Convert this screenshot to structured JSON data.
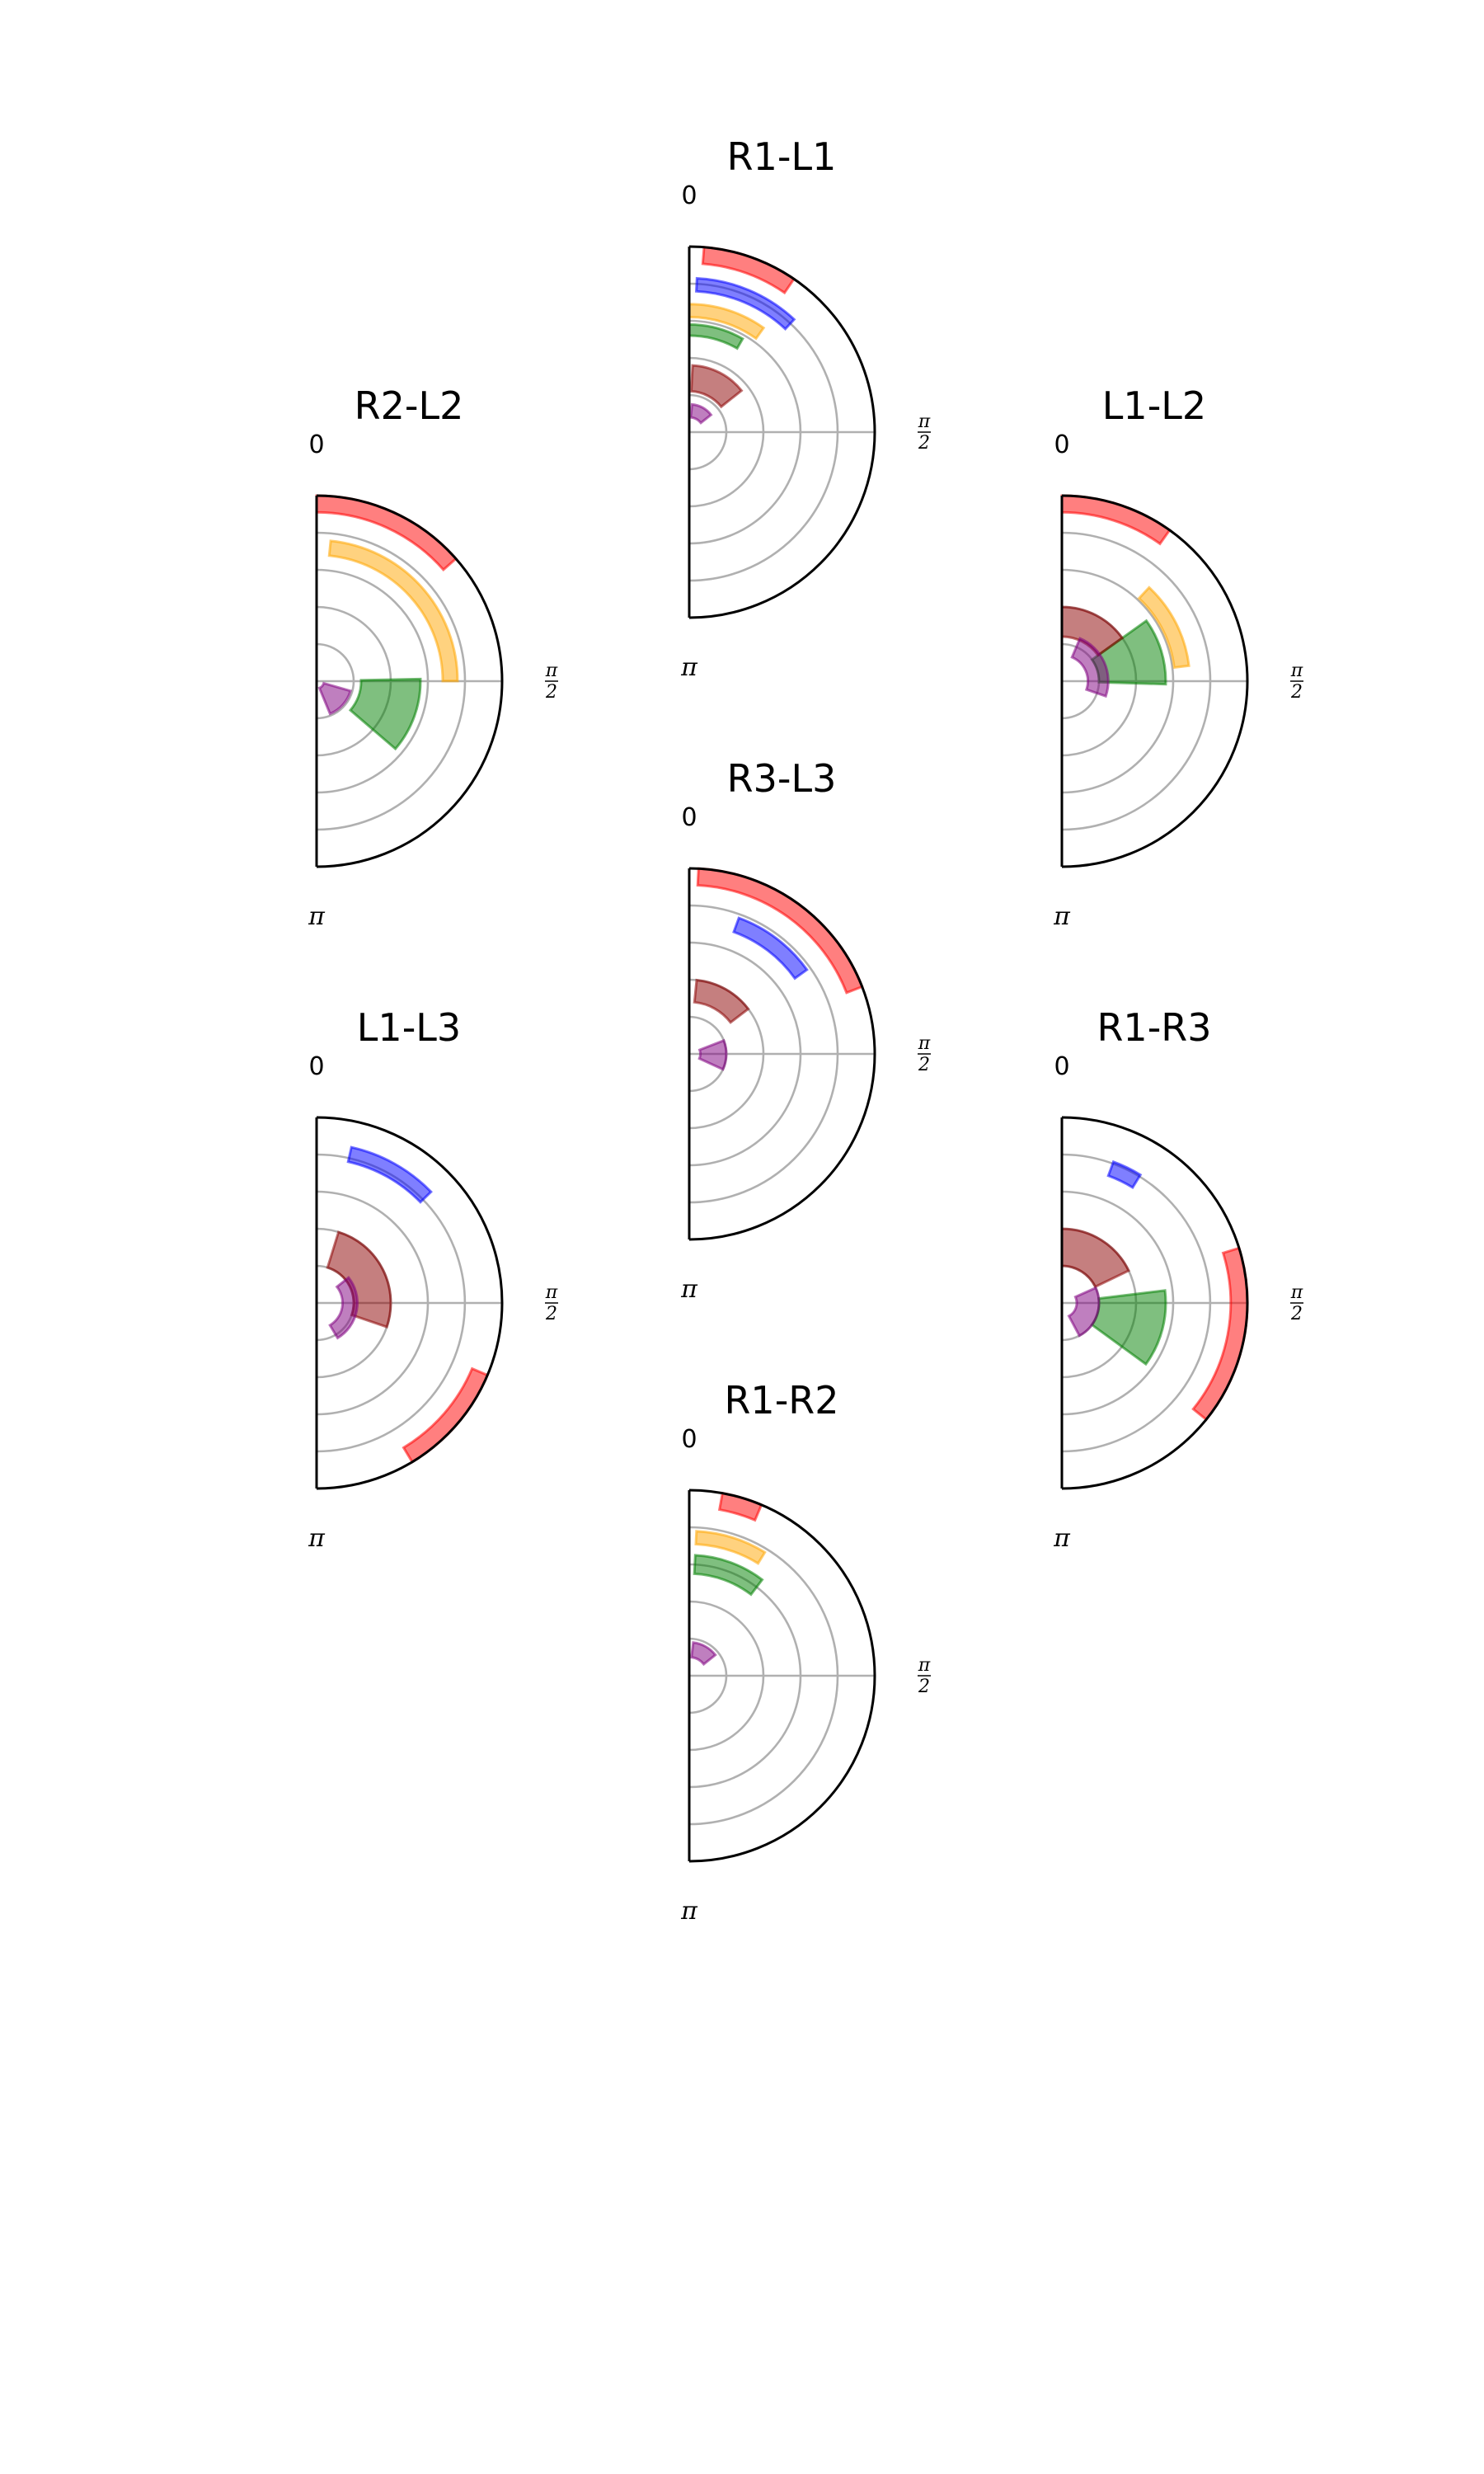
{
  "chart_data": [
    {
      "type": "polar-bar",
      "title": "R1-L1",
      "theta_tick_labels": [
        "0",
        "π/2",
        "π"
      ],
      "rlim": [
        0,
        5
      ],
      "grid": true,
      "bars": [
        {
          "color": "#ff0000",
          "theta_start": 0.08,
          "theta_end": 0.6,
          "r_inner": 4.55,
          "r_outer": 5.0
        },
        {
          "color": "#0000ff",
          "theta_start": 0.05,
          "theta_end": 0.75,
          "r_inner": 3.8,
          "r_outer": 4.15
        },
        {
          "color": "#ffa500",
          "theta_start": 0.0,
          "theta_end": 0.62,
          "r_inner": 3.1,
          "r_outer": 3.45
        },
        {
          "color": "#008000",
          "theta_start": 0.0,
          "theta_end": 0.52,
          "r_inner": 2.6,
          "r_outer": 2.9
        },
        {
          "color": "#8b0000",
          "theta_start": 0.05,
          "theta_end": 0.9,
          "r_inner": 1.1,
          "r_outer": 1.8
        },
        {
          "color": "#800080",
          "theta_start": 0.1,
          "theta_end": 0.9,
          "r_inner": 0.4,
          "r_outer": 0.75
        }
      ]
    },
    {
      "type": "polar-bar",
      "title": "R2-L2",
      "theta_tick_labels": [
        "0",
        "π/2",
        "π"
      ],
      "rlim": [
        0,
        5
      ],
      "grid": true,
      "bars": [
        {
          "color": "#ff0000",
          "theta_start": 0.0,
          "theta_end": 0.85,
          "r_inner": 4.55,
          "r_outer": 5.0
        },
        {
          "color": "#ffa500",
          "theta_start": 0.1,
          "theta_end": 1.57,
          "r_inner": 3.4,
          "r_outer": 3.8
        },
        {
          "color": "#008000",
          "theta_start": 1.55,
          "theta_end": 2.28,
          "r_inner": 1.2,
          "r_outer": 2.8
        },
        {
          "color": "#800080",
          "theta_start": 1.85,
          "theta_end": 2.75,
          "r_inner": 0.2,
          "r_outer": 0.95
        }
      ]
    },
    {
      "type": "polar-bar",
      "title": "L1-L2",
      "theta_tick_labels": [
        "0",
        "π/2",
        "π"
      ],
      "rlim": [
        0,
        5
      ],
      "grid": true,
      "bars": [
        {
          "color": "#ff0000",
          "theta_start": 0.0,
          "theta_end": 0.62,
          "r_inner": 4.55,
          "r_outer": 5.0
        },
        {
          "color": "#ffa500",
          "theta_start": 0.75,
          "theta_end": 1.45,
          "r_inner": 3.05,
          "r_outer": 3.45
        },
        {
          "color": "#008000",
          "theta_start": 0.95,
          "theta_end": 1.6,
          "r_inner": 1.0,
          "r_outer": 2.8
        },
        {
          "color": "#8b0000",
          "theta_start": 0.0,
          "theta_end": 0.95,
          "r_inner": 1.2,
          "r_outer": 2.0
        },
        {
          "color": "#800080",
          "theta_start": 0.4,
          "theta_end": 1.9,
          "r_inner": 0.7,
          "r_outer": 1.25
        }
      ]
    },
    {
      "type": "polar-bar",
      "title": "R3-L3",
      "theta_tick_labels": [
        "0",
        "π/2",
        "π"
      ],
      "rlim": [
        0,
        5
      ],
      "grid": true,
      "bars": [
        {
          "color": "#ff0000",
          "theta_start": 0.05,
          "theta_end": 1.2,
          "r_inner": 4.55,
          "r_outer": 5.0
        },
        {
          "color": "#0000ff",
          "theta_start": 0.35,
          "theta_end": 0.95,
          "r_inner": 3.5,
          "r_outer": 3.9
        },
        {
          "color": "#8b0000",
          "theta_start": 0.1,
          "theta_end": 0.92,
          "r_inner": 1.4,
          "r_outer": 2.0
        },
        {
          "color": "#800080",
          "theta_start": 1.2,
          "theta_end": 2.0,
          "r_inner": 0.3,
          "r_outer": 1.0
        }
      ]
    },
    {
      "type": "polar-bar",
      "title": "L1-L3",
      "theta_tick_labels": [
        "0",
        "π/2",
        "π"
      ],
      "rlim": [
        0,
        5
      ],
      "grid": true,
      "bars": [
        {
          "color": "#0000ff",
          "theta_start": 0.22,
          "theta_end": 0.8,
          "r_inner": 3.9,
          "r_outer": 4.3
        },
        {
          "color": "#8b0000",
          "theta_start": 0.3,
          "theta_end": 1.9,
          "r_inner": 1.0,
          "r_outer": 2.0
        },
        {
          "color": "#800080",
          "theta_start": 0.9,
          "theta_end": 2.6,
          "r_inner": 0.7,
          "r_outer": 1.1
        },
        {
          "color": "#ff0000",
          "theta_start": 1.97,
          "theta_end": 2.6,
          "r_inner": 4.55,
          "r_outer": 5.0
        }
      ]
    },
    {
      "type": "polar-bar",
      "title": "R1-R3",
      "theta_tick_labels": [
        "0",
        "π/2",
        "π"
      ],
      "rlim": [
        0,
        5
      ],
      "grid": true,
      "bars": [
        {
          "color": "#0000ff",
          "theta_start": 0.35,
          "theta_end": 0.55,
          "r_inner": 3.65,
          "r_outer": 4.05
        },
        {
          "color": "#8b0000",
          "theta_start": 0.0,
          "theta_end": 1.12,
          "r_inner": 1.0,
          "r_outer": 2.0
        },
        {
          "color": "#008000",
          "theta_start": 1.45,
          "theta_end": 2.2,
          "r_inner": 1.0,
          "r_outer": 2.8
        },
        {
          "color": "#800080",
          "theta_start": 1.15,
          "theta_end": 2.65,
          "r_inner": 0.4,
          "r_outer": 1.0
        },
        {
          "color": "#ff0000",
          "theta_start": 1.27,
          "theta_end": 2.25,
          "r_inner": 4.55,
          "r_outer": 5.0
        }
      ]
    },
    {
      "type": "polar-bar",
      "title": "R1-R2",
      "theta_tick_labels": [
        "0",
        "π/2",
        "π"
      ],
      "rlim": [
        0,
        5
      ],
      "grid": true,
      "bars": [
        {
          "color": "#ff0000",
          "theta_start": 0.18,
          "theta_end": 0.4,
          "r_inner": 4.55,
          "r_outer": 5.0
        },
        {
          "color": "#ffa500",
          "theta_start": 0.05,
          "theta_end": 0.55,
          "r_inner": 3.55,
          "r_outer": 3.9
        },
        {
          "color": "#008000",
          "theta_start": 0.05,
          "theta_end": 0.65,
          "r_inner": 2.75,
          "r_outer": 3.25
        },
        {
          "color": "#800080",
          "theta_start": 0.12,
          "theta_end": 0.9,
          "r_inner": 0.5,
          "r_outer": 0.9
        }
      ]
    }
  ]
}
